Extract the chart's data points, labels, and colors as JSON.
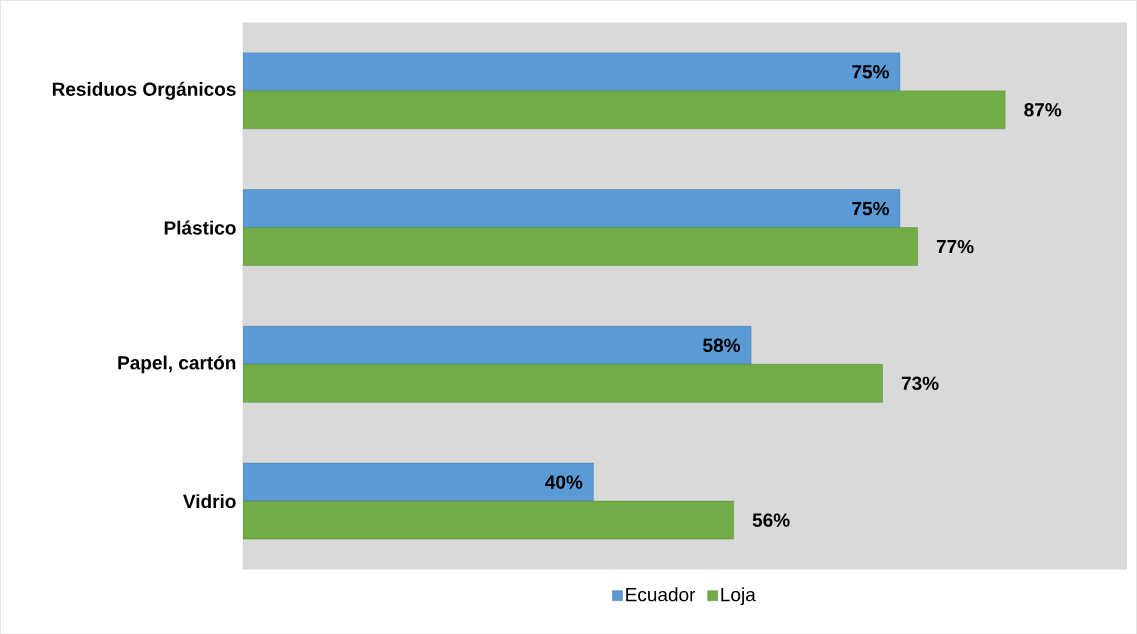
{
  "chart_data": {
    "type": "bar",
    "orientation": "horizontal",
    "categories": [
      "Residuos Orgánicos",
      "Plástico",
      "Papel, cartón",
      "Vidrio"
    ],
    "series": [
      {
        "name": "Ecuador",
        "color": "#5b9bd5",
        "values": [
          75,
          75,
          58,
          40
        ],
        "value_labels": [
          "75%",
          "75%",
          "58%",
          "40%"
        ]
      },
      {
        "name": "Loja",
        "color": "#70ad47",
        "values": [
          87,
          77,
          73,
          56
        ],
        "value_labels": [
          "87%",
          "77%",
          "73%",
          "56%"
        ]
      }
    ],
    "legend": "bottom"
  }
}
